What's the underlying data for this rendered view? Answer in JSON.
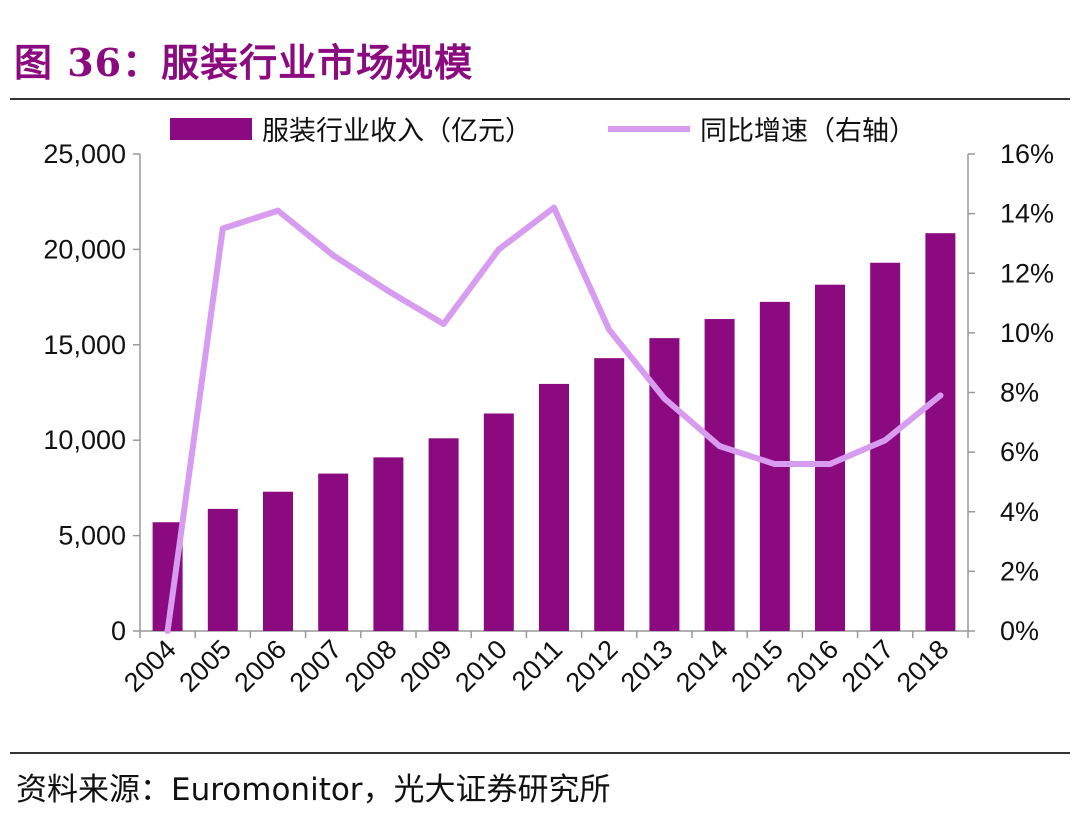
{
  "title": "图 36：服装行业市场规模",
  "source": "资料来源：Euromonitor，光大证券研究所",
  "chart_data": {
    "type": "bar",
    "categories": [
      "2004",
      "2005",
      "2006",
      "2007",
      "2008",
      "2009",
      "2010",
      "2011",
      "2012",
      "2013",
      "2014",
      "2015",
      "2016",
      "2017",
      "2018"
    ],
    "series": [
      {
        "name": "服装行业收入（亿元）",
        "type": "bar",
        "axis": "left",
        "color": "#8b0a7f",
        "values": [
          5700,
          6400,
          7300,
          8250,
          9100,
          10100,
          11400,
          12950,
          14300,
          15350,
          16350,
          17250,
          18150,
          19300,
          20850
        ]
      },
      {
        "name": "同比增速（右轴）",
        "type": "line",
        "axis": "right",
        "color": "#d79bf0",
        "values": [
          0.0,
          13.5,
          14.1,
          12.6,
          11.4,
          10.3,
          12.8,
          14.2,
          10.1,
          7.8,
          6.2,
          5.6,
          5.6,
          6.4,
          7.9
        ]
      }
    ],
    "y_left": {
      "ylim": [
        0,
        25000
      ],
      "ticks": [
        "0",
        "5,000",
        "10,000",
        "15,000",
        "20,000",
        "25,000"
      ]
    },
    "y_right": {
      "ylim": [
        0,
        16
      ],
      "ticks": [
        "0%",
        "2%",
        "4%",
        "6%",
        "8%",
        "10%",
        "12%",
        "14%",
        "16%"
      ]
    },
    "legend_position": "top",
    "grid": false
  }
}
